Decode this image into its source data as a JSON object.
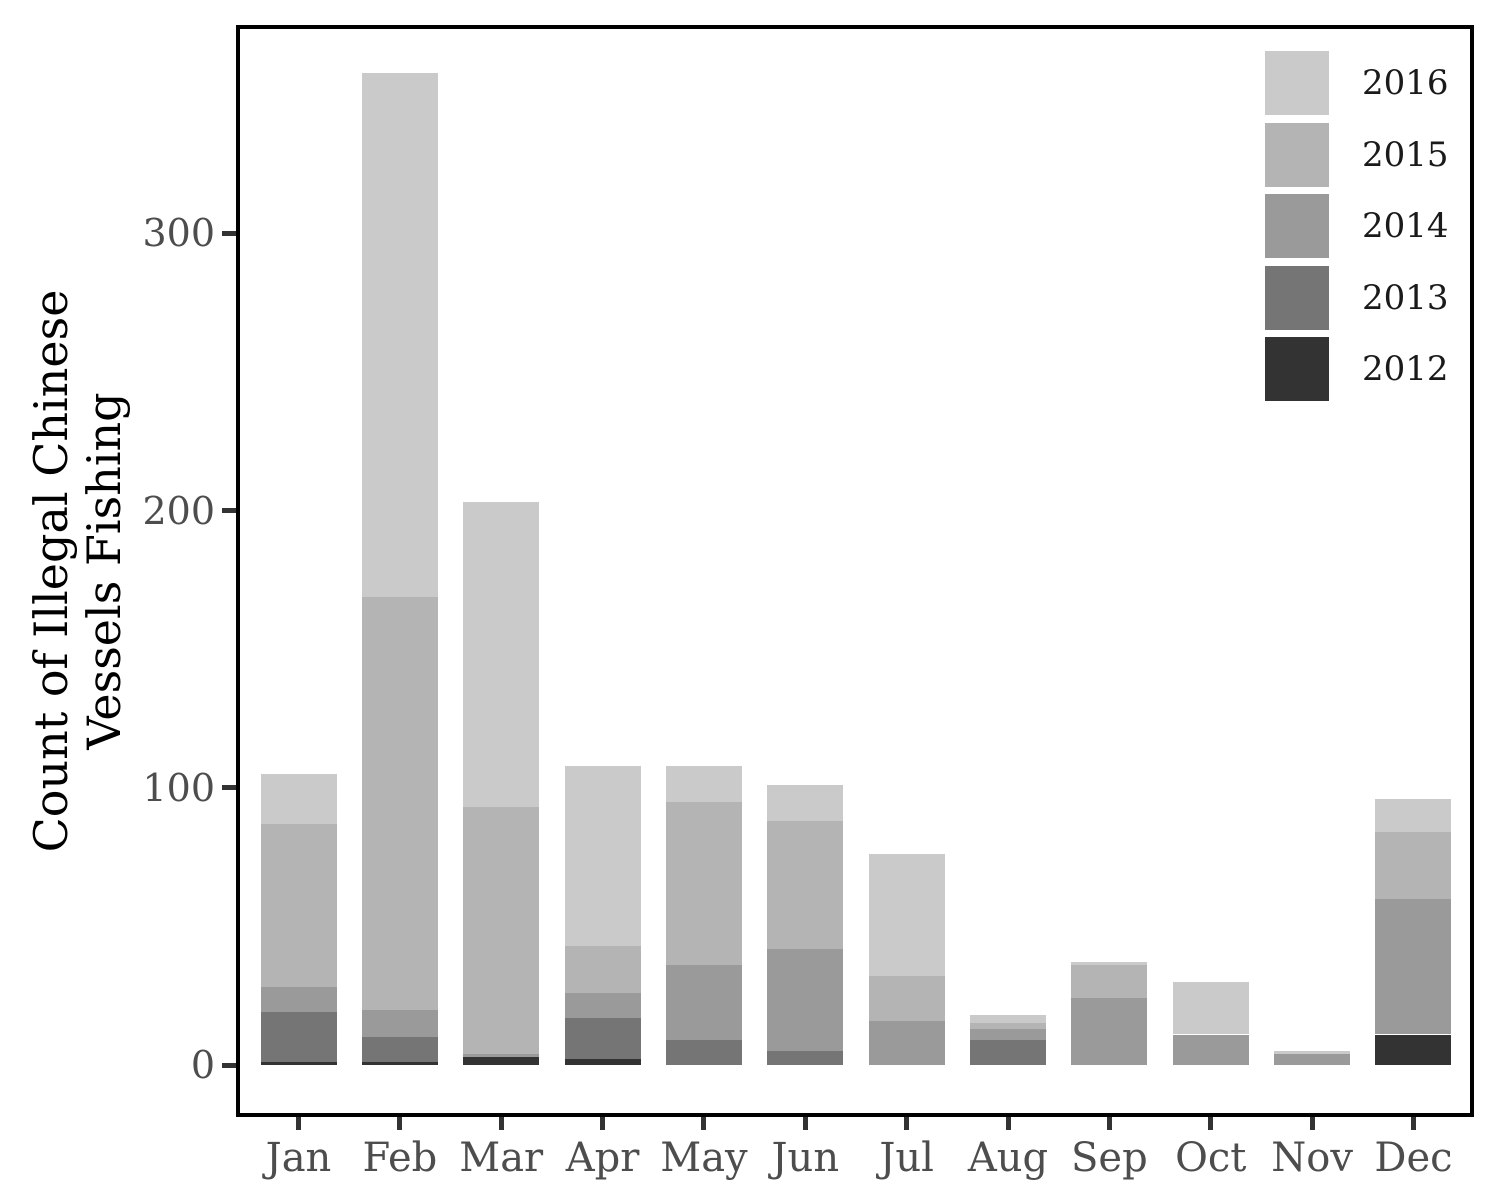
{
  "chart_data": {
    "type": "bar",
    "stacked": true,
    "title": "",
    "xlabel": "",
    "ylabel": "Count of Illegal Chinese Vessels Fishing",
    "ylabel_lines": [
      "Count of Illegal Chinese",
      "Vessels Fishing"
    ],
    "categories": [
      "Jan",
      "Feb",
      "Mar",
      "Apr",
      "May",
      "Jun",
      "Jul",
      "Aug",
      "Sep",
      "Oct",
      "Nov",
      "Dec"
    ],
    "series": [
      {
        "name": "2012",
        "color": "#333333",
        "values": [
          1,
          1,
          3,
          2,
          0,
          0,
          0,
          0,
          0,
          0,
          0,
          11
        ]
      },
      {
        "name": "2013",
        "color": "#757575",
        "values": [
          18,
          9,
          0,
          15,
          9,
          5,
          0,
          9,
          0,
          0,
          0,
          0
        ]
      },
      {
        "name": "2014",
        "color": "#9a9a9a",
        "values": [
          9,
          10,
          1,
          9,
          27,
          37,
          16,
          4,
          24,
          11,
          4,
          49
        ]
      },
      {
        "name": "2015",
        "color": "#b4b4b4",
        "values": [
          59,
          149,
          89,
          17,
          59,
          46,
          16,
          2,
          12,
          0,
          0,
          24
        ]
      },
      {
        "name": "2016",
        "color": "#cacaca",
        "values": [
          18,
          189,
          110,
          65,
          13,
          13,
          44,
          3,
          1,
          19,
          1,
          12
        ]
      }
    ],
    "stack_order_bottom_to_top": [
      "2012",
      "2013",
      "2014",
      "2015",
      "2016"
    ],
    "monthly_totals": [
      105,
      358,
      203,
      108,
      108,
      101,
      76,
      18,
      37,
      30,
      5,
      96
    ],
    "yticks": [
      0,
      100,
      200,
      300
    ],
    "ylim": [
      0,
      374
    ],
    "grid": false,
    "legend": {
      "position": "top-right",
      "entries_top_to_bottom": [
        "2016",
        "2015",
        "2014",
        "2013",
        "2012"
      ]
    }
  },
  "axis_style": {
    "tick_label_color": "#4d4d4d",
    "tick_mark_color": "#333333",
    "panel_border_color": "#000000",
    "legend_label_color": "#1a1a1a"
  }
}
